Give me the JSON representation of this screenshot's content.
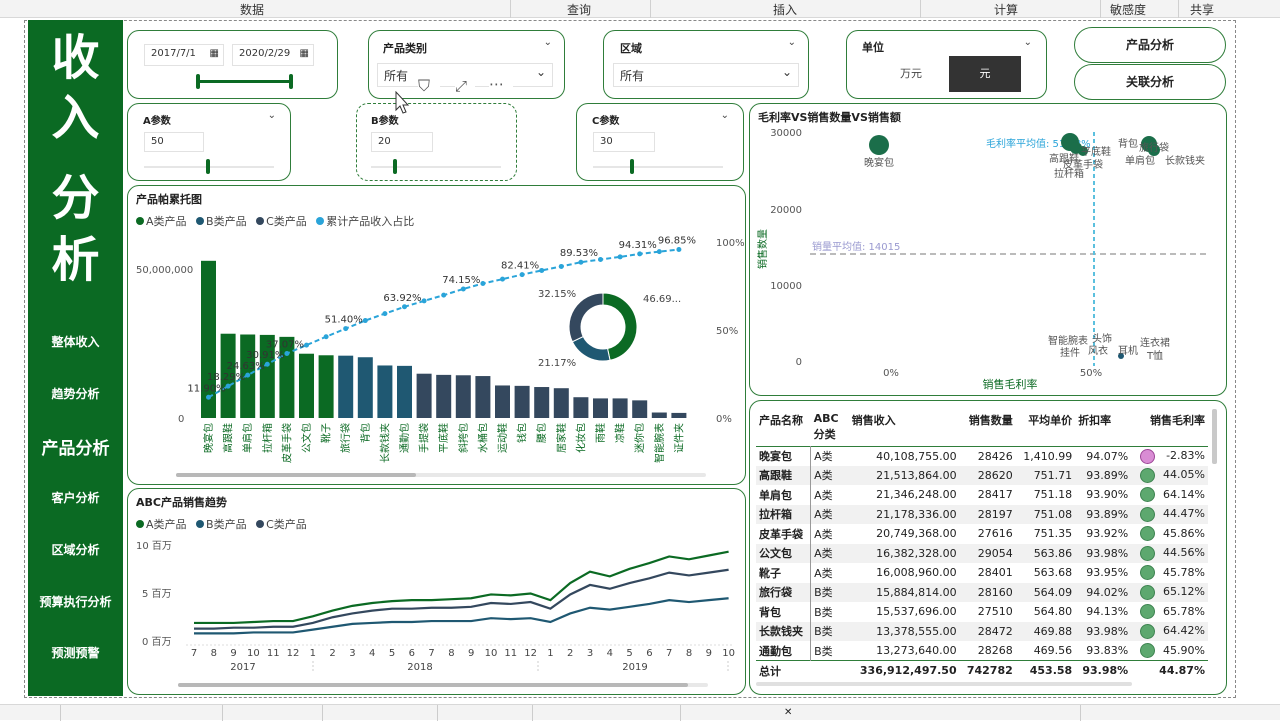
{
  "ribbon": [
    "数据",
    "查询",
    "插入",
    "计算",
    "敏感度",
    "共享"
  ],
  "sidebar": {
    "title": [
      "收",
      "入",
      "分",
      "析"
    ],
    "items": [
      {
        "label": "整体收入",
        "active": false
      },
      {
        "label": "趋势分析",
        "active": false
      },
      {
        "label": "产品分析",
        "active": true
      },
      {
        "label": "客户分析",
        "active": false
      },
      {
        "label": "区域分析",
        "active": false
      },
      {
        "label": "预算执行分析",
        "active": false
      },
      {
        "label": "预测预警",
        "active": false
      }
    ]
  },
  "date_filter": {
    "start": "2017/7/1",
    "end": "2020/2/29"
  },
  "category_filter": {
    "label": "产品类别",
    "value": "所有"
  },
  "region_filter": {
    "label": "区域",
    "value": "所有"
  },
  "unit_filter": {
    "label": "单位",
    "option_a": "万元",
    "option_b": "元",
    "selected": "元"
  },
  "nav_buttons": {
    "product": "产品分析",
    "related": "关联分析"
  },
  "params": [
    {
      "label": "A参数",
      "value": "50"
    },
    {
      "label": "B参数",
      "value": "20"
    },
    {
      "label": "C参数",
      "value": "30"
    }
  ],
  "pareto": {
    "title": "产品帕累托图",
    "legend": [
      "A类产品",
      "B类产品",
      "C类产品",
      "累计产品收入占比"
    ],
    "y_ticks": [
      "50,000,000",
      "0"
    ],
    "y2_ticks": [
      "100%",
      "50%",
      "0%"
    ],
    "pct_labels": [
      "11.90%",
      "18.29%",
      "24.63%",
      "30.91%",
      "37.07%",
      "51.40%",
      "63.92%",
      "74.15%",
      "82.41%",
      "89.53%",
      "94.31%",
      "96.85%"
    ],
    "donut_labels": [
      "32.15%",
      "46.69...",
      "21.17%"
    ]
  },
  "scatter": {
    "title": "毛利率VS销售数量VS销售额",
    "y_label": "销售数量",
    "x_label": "销售毛利率",
    "y_ticks": [
      "30000",
      "20000",
      "10000",
      "0"
    ],
    "x_ticks": [
      "0%",
      "50%"
    ],
    "avg_margin": "毛利率平均值: 51.08%",
    "avg_qty": "销量平均值: 14015",
    "points": [
      "晚宴包",
      "高跟鞋",
      "拉杆箱",
      "平底鞋",
      "皮革手袋",
      "背包",
      "旅行袋",
      "单肩包",
      "长款钱夹",
      "智能腕表",
      "头饰",
      "挂件",
      "风衣",
      "耳机",
      "连衣裙",
      "T恤"
    ]
  },
  "abc_trend": {
    "title": "ABC产品销售趋势",
    "legend": [
      "A类产品",
      "B类产品",
      "C类产品"
    ],
    "y_ticks": [
      "10 百万",
      "5 百万",
      "0 百万"
    ],
    "months": [
      "7",
      "8",
      "9",
      "10",
      "11",
      "12",
      "1",
      "2",
      "3",
      "4",
      "5",
      "6",
      "7",
      "8",
      "9",
      "10",
      "11",
      "12",
      "1",
      "2",
      "3",
      "4",
      "5",
      "6",
      "7",
      "8",
      "9",
      "10"
    ],
    "years": [
      "2017",
      "2018",
      "2019"
    ]
  },
  "colors": {
    "a": "#0b6a23",
    "b": "#1f5872",
    "c": "#34485e",
    "cum": "#2aa4d9",
    "accent": "#2f7d3a"
  },
  "chart_data": [
    {
      "type": "bar",
      "title": "产品帕累托图",
      "categories": [
        "晚宴包",
        "高跟鞋",
        "单肩包",
        "拉杆箱",
        "皮革手袋",
        "公文包",
        "靴子",
        "旅行袋",
        "背包",
        "长款钱夹",
        "通勤包",
        "手提袋",
        "平底鞋",
        "斜挎包",
        "水桶包",
        "运动鞋",
        "钱包",
        "腰包",
        "居家鞋",
        "化妆包",
        "雨鞋",
        "凉鞋",
        "迷你包",
        "智能腕表",
        "证件夹"
      ],
      "series": [
        {
          "name": "A类产品",
          "values": [
            40.1,
            21.5,
            21.3,
            21.2,
            20.7,
            16.4,
            16.0,
            0,
            0,
            0,
            0,
            0,
            0,
            0,
            0,
            0,
            0,
            0,
            0,
            0,
            0,
            0,
            0,
            0,
            0
          ]
        },
        {
          "name": "B类产品",
          "values": [
            0,
            0,
            0,
            0,
            0,
            0,
            0,
            15.9,
            15.5,
            13.4,
            13.3,
            0,
            0,
            0,
            0,
            0,
            0,
            0,
            0,
            0,
            0,
            0,
            0,
            0,
            0
          ]
        },
        {
          "name": "C类产品",
          "values": [
            0,
            0,
            0,
            0,
            0,
            0,
            0,
            0,
            0,
            0,
            0,
            11.3,
            11.0,
            10.9,
            10.7,
            8.3,
            8.2,
            7.9,
            7.6,
            5.3,
            5.0,
            5.0,
            4.5,
            1.4,
            1.3
          ]
        },
        {
          "name": "累计产品收入占比",
          "values": [
            11.9,
            18.29,
            24.63,
            30.91,
            37.07,
            41.9,
            46.7,
            51.4,
            56.0,
            60.0,
            63.92,
            67.3,
            70.6,
            74.15,
            77.3,
            79.8,
            82.41,
            84.8,
            87.1,
            89.53,
            91.1,
            92.6,
            94.31,
            95.6,
            96.85
          ]
        }
      ],
      "ylim": [
        0,
        60
      ],
      "y2lim": [
        0,
        100
      ]
    },
    {
      "type": "pie",
      "labels": [
        "A类产品",
        "B类产品",
        "C类产品"
      ],
      "values": [
        46.69,
        21.17,
        32.15
      ]
    },
    {
      "type": "scatter",
      "title": "毛利率VS销售数量VS销售额",
      "xlabel": "销售毛利率",
      "ylabel": "销售数量",
      "points": [
        {
          "name": "晚宴包",
          "x": -2.83,
          "y": 28426
        },
        {
          "name": "高跟鞋",
          "x": 44.05,
          "y": 28620
        },
        {
          "name": "拉杆箱",
          "x": 44.47,
          "y": 28197
        },
        {
          "name": "皮革手袋",
          "x": 45.86,
          "y": 27616
        },
        {
          "name": "单肩包",
          "x": 64.14,
          "y": 28417
        },
        {
          "name": "背包",
          "x": 65.78,
          "y": 27510
        },
        {
          "name": "旅行袋",
          "x": 65.12,
          "y": 28160
        },
        {
          "name": "长款钱夹",
          "x": 64.42,
          "y": 28472
        }
      ],
      "xlim": [
        -10,
        80
      ],
      "ylim": [
        0,
        30000
      ]
    },
    {
      "type": "line",
      "title": "ABC产品销售趋势",
      "x": [
        "2017-07",
        "2017-08",
        "2017-09",
        "2017-10",
        "2017-11",
        "2017-12",
        "2018-01",
        "2018-02",
        "2018-03",
        "2018-04",
        "2018-05",
        "2018-06",
        "2018-07",
        "2018-08",
        "2018-09",
        "2018-10",
        "2018-11",
        "2018-12",
        "2019-01",
        "2019-02",
        "2019-03",
        "2019-04",
        "2019-05",
        "2019-06",
        "2019-07",
        "2019-08",
        "2019-09",
        "2019-10"
      ],
      "series": [
        {
          "name": "A类产品",
          "values": [
            1.9,
            1.9,
            1.9,
            2.0,
            2.1,
            2.1,
            2.6,
            3.2,
            3.7,
            4.0,
            4.2,
            4.3,
            4.3,
            4.4,
            4.5,
            4.9,
            4.8,
            5.0,
            4.3,
            6.1,
            7.3,
            6.8,
            7.6,
            8.2,
            8.9,
            8.6,
            9.0,
            9.4
          ]
        },
        {
          "name": "B类产品",
          "values": [
            1.3,
            1.3,
            1.4,
            1.4,
            1.5,
            1.5,
            1.9,
            2.5,
            2.9,
            3.2,
            3.4,
            3.4,
            3.5,
            3.5,
            3.6,
            4.0,
            3.9,
            4.1,
            3.4,
            4.9,
            5.9,
            5.5,
            6.1,
            6.6,
            7.2,
            6.9,
            7.2,
            7.5
          ]
        },
        {
          "name": "C类产品",
          "values": [
            0.8,
            0.8,
            0.8,
            0.9,
            0.9,
            0.9,
            1.2,
            1.5,
            1.8,
            1.9,
            2.0,
            2.0,
            2.1,
            2.1,
            2.1,
            2.4,
            2.3,
            2.4,
            2.0,
            2.9,
            3.5,
            3.3,
            3.6,
            3.9,
            4.3,
            4.1,
            4.3,
            4.5
          ]
        }
      ],
      "ylim": [
        0,
        10
      ]
    }
  ],
  "table": {
    "headers": [
      "产品名称",
      "ABC分类",
      "销售收入",
      "销售数量",
      "平均单价",
      "折扣率",
      "销售毛利率"
    ],
    "rows": [
      {
        "name": "晚宴包",
        "abc": "A类",
        "rev": "40,108,755.00",
        "qty": "28426",
        "price": "1,410.99",
        "disc": "94.07%",
        "margin": "-2.83%",
        "bad": true
      },
      {
        "name": "高跟鞋",
        "abc": "A类",
        "rev": "21,513,864.00",
        "qty": "28620",
        "price": "751.71",
        "disc": "93.89%",
        "margin": "44.05%",
        "bad": false
      },
      {
        "name": "单肩包",
        "abc": "A类",
        "rev": "21,346,248.00",
        "qty": "28417",
        "price": "751.18",
        "disc": "93.90%",
        "margin": "64.14%",
        "bad": false
      },
      {
        "name": "拉杆箱",
        "abc": "A类",
        "rev": "21,178,336.00",
        "qty": "28197",
        "price": "751.08",
        "disc": "93.89%",
        "margin": "44.47%",
        "bad": false
      },
      {
        "name": "皮革手袋",
        "abc": "A类",
        "rev": "20,749,368.00",
        "qty": "27616",
        "price": "751.35",
        "disc": "93.92%",
        "margin": "45.86%",
        "bad": false
      },
      {
        "name": "公文包",
        "abc": "A类",
        "rev": "16,382,328.00",
        "qty": "29054",
        "price": "563.86",
        "disc": "93.98%",
        "margin": "44.56%",
        "bad": false
      },
      {
        "name": "靴子",
        "abc": "A类",
        "rev": "16,008,960.00",
        "qty": "28401",
        "price": "563.68",
        "disc": "93.95%",
        "margin": "45.78%",
        "bad": false
      },
      {
        "name": "旅行袋",
        "abc": "B类",
        "rev": "15,884,814.00",
        "qty": "28160",
        "price": "564.09",
        "disc": "94.02%",
        "margin": "65.12%",
        "bad": false
      },
      {
        "name": "背包",
        "abc": "B类",
        "rev": "15,537,696.00",
        "qty": "27510",
        "price": "564.80",
        "disc": "94.13%",
        "margin": "65.78%",
        "bad": false
      },
      {
        "name": "长款钱夹",
        "abc": "B类",
        "rev": "13,378,555.00",
        "qty": "28472",
        "price": "469.88",
        "disc": "93.98%",
        "margin": "64.42%",
        "bad": false
      },
      {
        "name": "通勤包",
        "abc": "B类",
        "rev": "13,273,640.00",
        "qty": "28268",
        "price": "469.56",
        "disc": "93.83%",
        "margin": "45.90%",
        "bad": false
      }
    ],
    "total": {
      "name": "总计",
      "rev": "336,912,497.50",
      "qty": "742782",
      "price": "453.58",
      "disc": "93.98%",
      "margin": "44.87%"
    }
  }
}
